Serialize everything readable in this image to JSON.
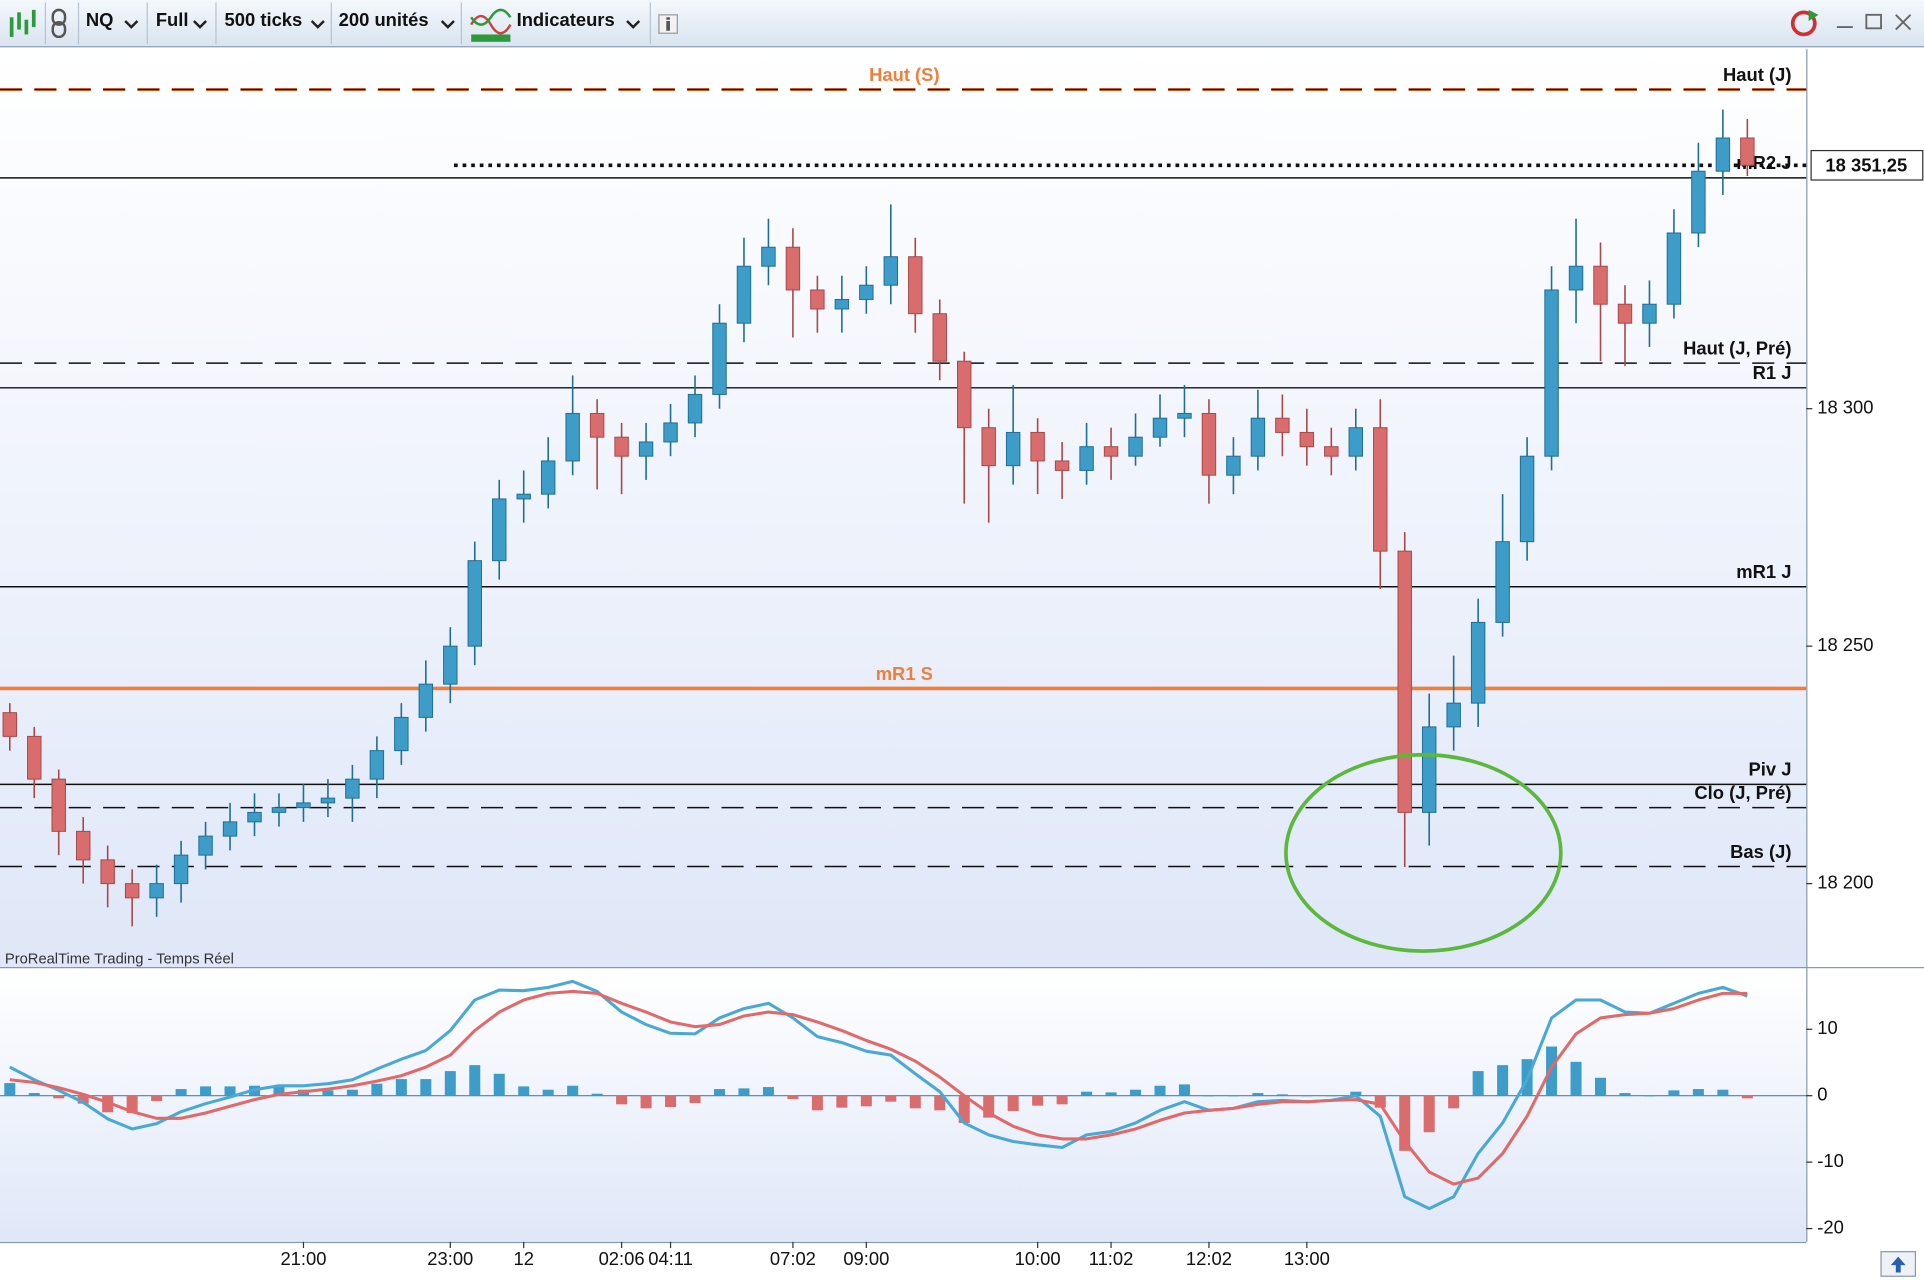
{
  "toolbar": {
    "symbol": "NQ",
    "mode": "Full",
    "ticks": "500 ticks",
    "units": "200 unités",
    "indicators": "Indicateurs"
  },
  "chart_data": [
    {
      "type": "candlestick",
      "source": "ProRealTime Trading - Temps Réel",
      "up_color": "#3d9cc8",
      "down_color": "#d96c6c",
      "xlim": [
        -0.4,
        71.6
      ],
      "ylim": [
        18182.7,
        18375.7
      ],
      "yticks": [
        {
          "value": 18200,
          "label": "18 200"
        },
        {
          "value": 18250,
          "label": "18 250"
        },
        {
          "value": 18300,
          "label": "18 300"
        }
      ],
      "xticks": [
        {
          "value": 12,
          "label": "21:00"
        },
        {
          "value": 18,
          "label": "23:00"
        },
        {
          "value": 21,
          "label": "12"
        },
        {
          "value": 25,
          "label": "02:06"
        },
        {
          "value": 27,
          "label": "04:11"
        },
        {
          "value": 32,
          "label": "07:02"
        },
        {
          "value": 35,
          "label": "09:00"
        },
        {
          "value": 42,
          "label": "10:00"
        },
        {
          "value": 45,
          "label": "11:02"
        },
        {
          "value": 49,
          "label": "12:02"
        },
        {
          "value": 53,
          "label": "13:00"
        }
      ],
      "open": [
        18236,
        18231,
        18222,
        18211,
        18205,
        18200,
        18197,
        18200,
        18206,
        18210,
        18213,
        18215,
        18216,
        18217,
        18218,
        18222,
        18228,
        18235,
        18242,
        18250,
        18268,
        18281,
        18282,
        18289,
        18299,
        18294,
        18290,
        18293,
        18297,
        18303,
        18318,
        18330,
        18334,
        18325,
        18321,
        18323,
        18326,
        18332,
        18320,
        18310,
        18296,
        18288,
        18295,
        18289,
        18287,
        18292,
        18290,
        18294,
        18298,
        18299,
        18286,
        18290,
        18298,
        18295,
        18292,
        18290,
        18296,
        18270,
        18215,
        18233,
        18238,
        18255,
        18272,
        18290,
        18325,
        18330,
        18322,
        18318,
        18322,
        18337,
        18350,
        18357
      ],
      "high": [
        18238,
        18233,
        18224,
        18214,
        18208,
        18203,
        18204,
        18209,
        18213,
        18217,
        18219,
        18219,
        18221,
        18222,
        18225,
        18231,
        18238,
        18247,
        18254,
        18272,
        18285,
        18287,
        18294,
        18307,
        18302,
        18297,
        18297,
        18301,
        18307,
        18322,
        18336,
        18340,
        18338,
        18328,
        18328,
        18330,
        18343,
        18336,
        18323,
        18312,
        18300,
        18305,
        18298,
        18293,
        18297,
        18296,
        18299,
        18303,
        18305,
        18302,
        18294,
        18304,
        18303,
        18300,
        18296,
        18300,
        18302,
        18274,
        18240,
        18248,
        18260,
        18282,
        18294,
        18330,
        18340,
        18335,
        18326,
        18327,
        18342,
        18356,
        18363,
        18361
      ],
      "low": [
        18228,
        18218,
        18206,
        18200,
        18195,
        18191,
        18193,
        18196,
        18203,
        18207,
        18210,
        18212,
        18213,
        18214,
        18213,
        18218,
        18225,
        18232,
        18238,
        18246,
        18264,
        18276,
        18279,
        18286,
        18283,
        18282,
        18285,
        18290,
        18294,
        18300,
        18314,
        18326,
        18315,
        18316,
        18316,
        18320,
        18322,
        18316,
        18306,
        18280,
        18276,
        18284,
        18282,
        18281,
        18284,
        18285,
        18288,
        18292,
        18294,
        18280,
        18282,
        18287,
        18290,
        18288,
        18286,
        18287,
        18262,
        18203.5,
        18208,
        18228,
        18233,
        18252,
        18268,
        18287,
        18318,
        18310,
        18309,
        18313,
        18319,
        18334,
        18345,
        18349
      ],
      "close": [
        18231,
        18222,
        18211,
        18205,
        18200,
        18197,
        18200,
        18206,
        18210,
        18213,
        18215,
        18216,
        18217,
        18218,
        18222,
        18228,
        18235,
        18242,
        18250,
        18268,
        18281,
        18282,
        18289,
        18299,
        18294,
        18290,
        18293,
        18297,
        18303,
        18318,
        18330,
        18334,
        18325,
        18321,
        18323,
        18326,
        18332,
        18320,
        18310,
        18296,
        18288,
        18295,
        18289,
        18287,
        18292,
        18290,
        18294,
        18298,
        18299,
        18286,
        18290,
        18298,
        18295,
        18292,
        18290,
        18296,
        18270,
        18215,
        18233,
        18238,
        18255,
        18272,
        18290,
        18325,
        18330,
        18322,
        18318,
        18322,
        18337,
        18350,
        18357,
        18351.25
      ],
      "last_price": {
        "value": 18351.25,
        "label": "18 351,25"
      },
      "levels": [
        {
          "name": "Haut (S)",
          "value": 18367.2,
          "color": "#f07f3c",
          "style": "dashed",
          "label_align": "middle"
        },
        {
          "name": "Haut (J)",
          "value": 18367.2,
          "color": "#111111",
          "style": "dashed",
          "label_align": "end"
        },
        {
          "name": "mR2 J",
          "value": 18348.6,
          "color": "#111111",
          "style": "solid",
          "label_align": "end"
        },
        {
          "name": "Haut (J, Pré)",
          "value": 18309.6,
          "color": "#111111",
          "style": "dashed",
          "label_align": "end"
        },
        {
          "name": "R1 J",
          "value": 18304.4,
          "color": "#111111",
          "style": "solid",
          "label_align": "end"
        },
        {
          "name": "mR1 J",
          "value": 18262.5,
          "color": "#111111",
          "style": "solid",
          "label_align": "end"
        },
        {
          "name": "mR1 S",
          "value": 18241.1,
          "color": "#f07f3c",
          "style": "thick",
          "label_align": "middle"
        },
        {
          "name": "Piv J",
          "value": 18220.9,
          "color": "#111111",
          "style": "solid",
          "label_align": "end"
        },
        {
          "name": "Clo (J, Pré)",
          "value": 18216.0,
          "color": "#111111",
          "style": "dashed",
          "label_align": "end"
        },
        {
          "name": "Bas (J)",
          "value": 18203.6,
          "color": "#111111",
          "style": "dashed",
          "label_align": "end"
        }
      ]
    },
    {
      "type": "macd",
      "xlim": [
        -0.4,
        71.6
      ],
      "ylim": [
        -22,
        19
      ],
      "yticks": [
        -20,
        -10,
        0,
        10
      ],
      "histogram": {
        "up_color": "#3d9cc8",
        "down_color": "#d96c6c",
        "values": [
          1.9,
          0.4,
          -0.4,
          -1.2,
          -2.5,
          -2.6,
          -0.8,
          1.0,
          1.4,
          1.4,
          1.5,
          1.3,
          0.9,
          0.8,
          0.9,
          1.8,
          2.5,
          2.5,
          3.7,
          4.6,
          3.3,
          1.4,
          0.9,
          1.5,
          0.3,
          -1.3,
          -1.9,
          -1.7,
          -1.1,
          1.0,
          1.1,
          1.3,
          -0.5,
          -2.2,
          -1.8,
          -1.6,
          -0.9,
          -1.9,
          -2.2,
          -4.1,
          -3.3,
          -2.3,
          -1.5,
          -1.3,
          0.6,
          0.5,
          0.9,
          1.5,
          1.7,
          0.0,
          0.0,
          0.4,
          0.2,
          0.0,
          0.0,
          0.6,
          -1.8,
          -8.3,
          -5.5,
          -1.9,
          3.7,
          4.6,
          5.5,
          7.4,
          5.1,
          2.7,
          0.4,
          0.0,
          0.8,
          1.0,
          0.9,
          -0.4
        ]
      },
      "series": [
        {
          "color": "#4aa8d4",
          "values": [
            4.3,
            2.4,
            0.8,
            -1.0,
            -3.5,
            -5.0,
            -4.2,
            -2.4,
            -1.2,
            -0.2,
            0.9,
            1.5,
            1.5,
            1.8,
            2.4,
            4.0,
            5.5,
            6.8,
            9.8,
            14.4,
            15.9,
            15.8,
            16.3,
            17.2,
            15.7,
            12.6,
            10.7,
            9.4,
            9.3,
            11.7,
            13.1,
            13.9,
            11.7,
            8.9,
            8.0,
            6.7,
            6.1,
            3.3,
            0.6,
            -4.1,
            -5.9,
            -6.9,
            -7.4,
            -7.8,
            -5.9,
            -5.4,
            -4.1,
            -2.2,
            -0.9,
            -2.2,
            -1.9,
            -0.9,
            -0.7,
            -0.9,
            -0.7,
            0.0,
            -3.1,
            -15.2,
            -17.0,
            -15.2,
            -8.7,
            -4.1,
            2.4,
            11.7,
            14.4,
            14.4,
            12.6,
            12.4,
            13.9,
            15.4,
            16.3,
            15.0
          ]
        },
        {
          "color": "#e06a6a",
          "values": [
            2.4,
            2.0,
            1.2,
            0.2,
            -1.0,
            -2.4,
            -3.4,
            -3.4,
            -2.6,
            -1.6,
            -0.6,
            0.2,
            0.6,
            1.0,
            1.5,
            2.2,
            3.0,
            4.3,
            6.1,
            9.8,
            12.6,
            14.4,
            15.4,
            15.7,
            15.4,
            13.9,
            12.6,
            11.1,
            10.4,
            10.7,
            12.0,
            12.6,
            12.2,
            11.1,
            9.8,
            8.3,
            7.0,
            5.2,
            2.8,
            0.0,
            -2.6,
            -4.6,
            -5.9,
            -6.5,
            -6.5,
            -5.9,
            -5.0,
            -3.7,
            -2.6,
            -2.2,
            -1.9,
            -1.3,
            -0.9,
            -0.9,
            -0.7,
            -0.6,
            -1.3,
            -6.9,
            -11.5,
            -13.3,
            -12.4,
            -8.7,
            -3.1,
            4.3,
            9.3,
            11.7,
            12.2,
            12.4,
            13.1,
            14.4,
            15.4,
            15.4
          ]
        }
      ]
    }
  ]
}
